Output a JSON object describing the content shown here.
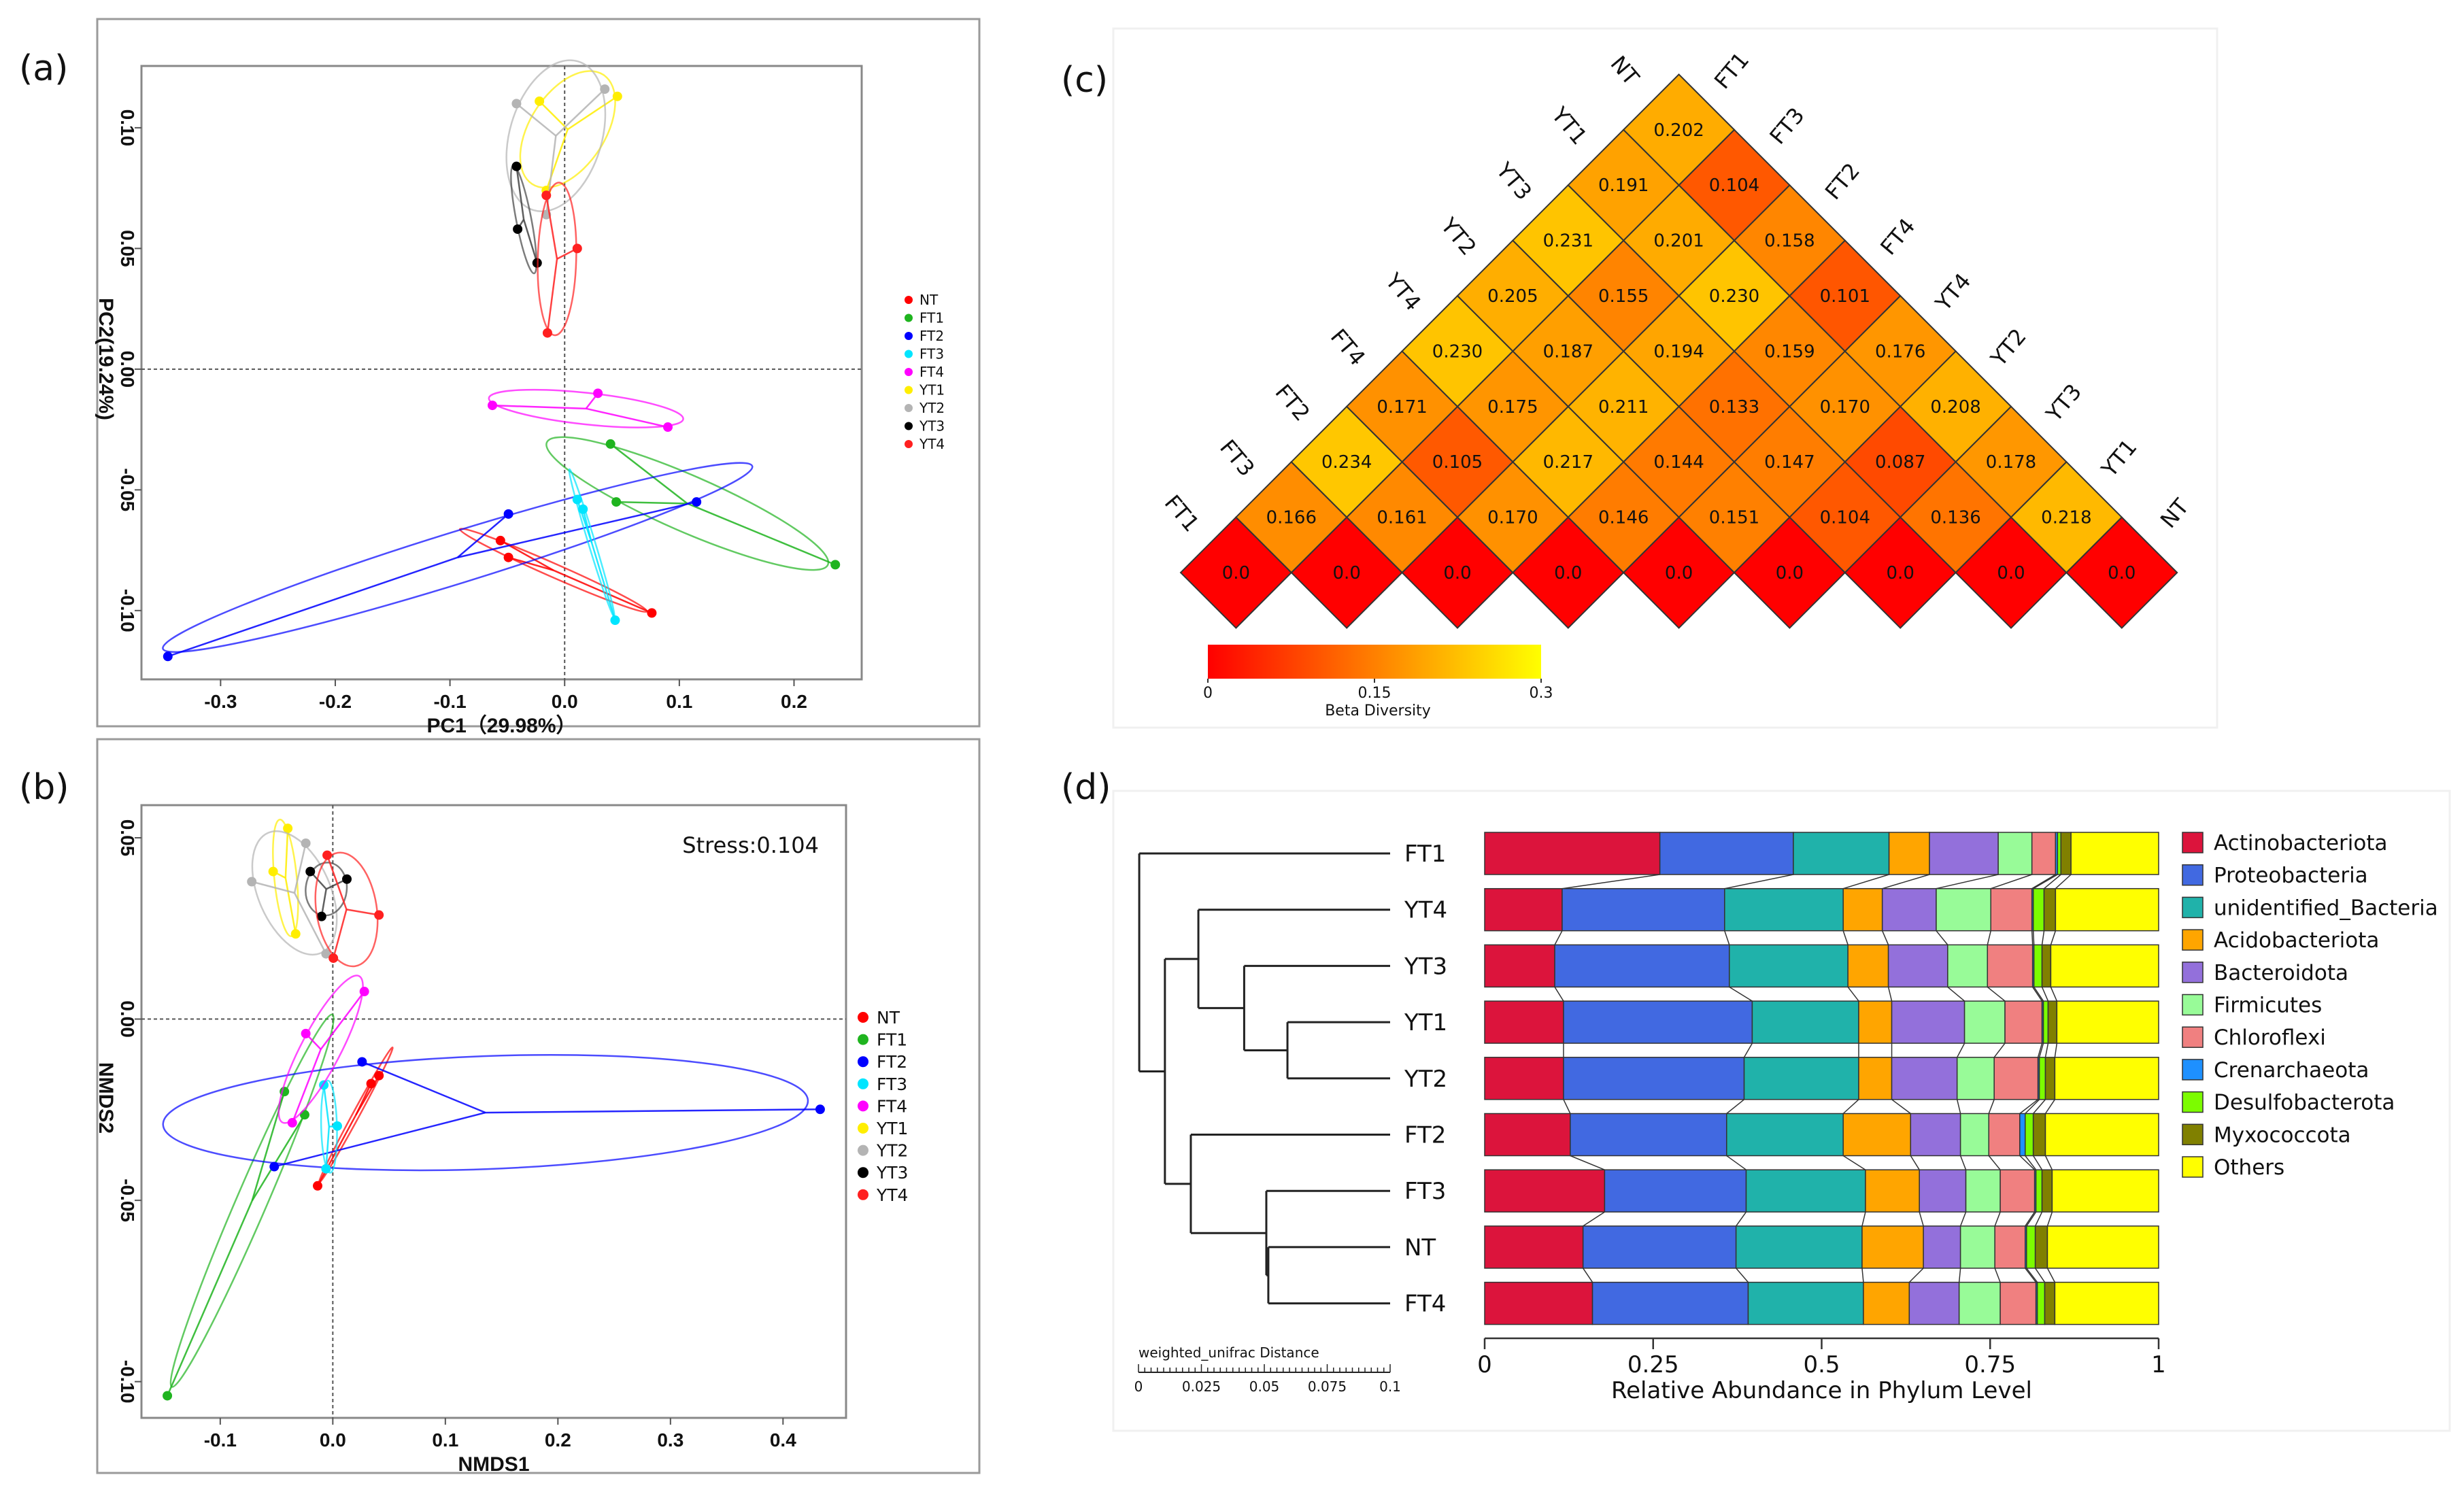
{
  "panels": {
    "a": "(a)",
    "b": "(b)",
    "c": "(c)",
    "d": "(d)"
  },
  "chart_data": [
    {
      "type": "scatter",
      "id": "pcoa",
      "xlabel": "PC1（29.98%）",
      "ylabel": "PC2(19.24%)",
      "xlim": [
        -0.369,
        0.259
      ],
      "ylim": [
        -0.1285,
        0.1256
      ],
      "xticks": [
        {
          "v": -0.3,
          "label": "-0.3"
        },
        {
          "v": -0.2,
          "label": "-0.2"
        },
        {
          "v": -0.1,
          "label": "-0.1"
        },
        {
          "v": 0,
          "label": "0.0"
        },
        {
          "v": 0.1,
          "label": "0.1"
        },
        {
          "v": 0.2,
          "label": "0.2"
        }
      ],
      "yticks": [
        {
          "v": -0.1,
          "label": "-0.10"
        },
        {
          "v": -0.05,
          "label": "-0.05"
        },
        {
          "v": 0,
          "label": "0.00"
        },
        {
          "v": 0.05,
          "label": "0.05"
        },
        {
          "v": 0.1,
          "label": "0.10"
        }
      ],
      "legend_position": "right",
      "groups": [
        {
          "name": "NT",
          "color": "#ff0000",
          "points": [
            [
              -0.056,
              -0.071
            ],
            [
              -0.049,
              -0.078
            ],
            [
              0.076,
              -0.101
            ]
          ]
        },
        {
          "name": "FT1",
          "color": "#1fb41f",
          "points": [
            [
              0.04,
              -0.031
            ],
            [
              0.045,
              -0.055
            ],
            [
              0.236,
              -0.081
            ]
          ]
        },
        {
          "name": "FT2",
          "color": "#0000ff",
          "points": [
            [
              -0.049,
              -0.06
            ],
            [
              0.115,
              -0.055
            ],
            [
              -0.346,
              -0.119
            ]
          ]
        },
        {
          "name": "FT3",
          "color": "#00e5ff",
          "points": [
            [
              0.011,
              -0.054
            ],
            [
              0.016,
              -0.058
            ],
            [
              0.044,
              -0.104
            ]
          ]
        },
        {
          "name": "FT4",
          "color": "#ff00ff",
          "points": [
            [
              -0.063,
              -0.015
            ],
            [
              0.029,
              -0.01
            ],
            [
              0.09,
              -0.024
            ]
          ]
        },
        {
          "name": "YT1",
          "color": "#ffee00",
          "points": [
            [
              -0.022,
              0.111
            ],
            [
              0.046,
              0.113
            ],
            [
              -0.016,
              0.074
            ]
          ]
        },
        {
          "name": "YT2",
          "color": "#b4b4b4",
          "points": [
            [
              -0.042,
              0.11
            ],
            [
              0.035,
              0.116
            ],
            [
              -0.016,
              0.064
            ]
          ]
        },
        {
          "name": "YT3",
          "color": "#000000",
          "points": [
            [
              -0.042,
              0.084
            ],
            [
              -0.041,
              0.058
            ],
            [
              -0.024,
              0.044
            ]
          ]
        },
        {
          "name": "YT4",
          "color": "#ff2020",
          "points": [
            [
              -0.016,
              0.072
            ],
            [
              0.011,
              0.05
            ],
            [
              -0.015,
              0.015
            ]
          ]
        }
      ]
    },
    {
      "type": "scatter",
      "id": "nmds",
      "xlabel": "NMDS1",
      "ylabel": "NMDS2",
      "annotation": "Stress:0.104",
      "xlim": [
        -0.17,
        0.456
      ],
      "ylim": [
        -0.11,
        0.059
      ],
      "xticks": [
        {
          "v": -0.1,
          "label": "-0.1"
        },
        {
          "v": 0,
          "label": "0.0"
        },
        {
          "v": 0.1,
          "label": "0.1"
        },
        {
          "v": 0.2,
          "label": "0.2"
        },
        {
          "v": 0.3,
          "label": "0.3"
        },
        {
          "v": 0.4,
          "label": "0.4"
        }
      ],
      "yticks": [
        {
          "v": -0.1,
          "label": "-0.10"
        },
        {
          "v": -0.05,
          "label": "-0.05"
        },
        {
          "v": 0,
          "label": "0.00"
        },
        {
          "v": 0.05,
          "label": "0.05"
        }
      ],
      "legend_position": "right",
      "groups": [
        {
          "name": "NT",
          "color": "#ff0000",
          "points": [
            [
              0.034,
              -0.0178
            ],
            [
              0.041,
              -0.0156
            ],
            [
              -0.0135,
              -0.046
            ]
          ]
        },
        {
          "name": "FT1",
          "color": "#1fb41f",
          "points": [
            [
              -0.043,
              -0.02
            ],
            [
              -0.025,
              -0.0264
            ],
            [
              -0.147,
              -0.1039
            ]
          ]
        },
        {
          "name": "FT2",
          "color": "#0000ff",
          "points": [
            [
              0.026,
              -0.0118
            ],
            [
              0.433,
              -0.0249
            ],
            [
              -0.052,
              -0.0407
            ]
          ]
        },
        {
          "name": "FT3",
          "color": "#00e5ff",
          "points": [
            [
              -0.008,
              -0.0182
            ],
            [
              0.004,
              -0.0295
            ],
            [
              -0.006,
              -0.0413
            ]
          ]
        },
        {
          "name": "FT4",
          "color": "#ff00ff",
          "points": [
            [
              0.028,
              0.0076
            ],
            [
              -0.024,
              -0.004
            ],
            [
              -0.036,
              -0.0286
            ]
          ]
        },
        {
          "name": "YT1",
          "color": "#ffee00",
          "points": [
            [
              -0.04,
              0.0526
            ],
            [
              -0.053,
              0.0407
            ],
            [
              -0.033,
              0.0235
            ]
          ]
        },
        {
          "name": "YT2",
          "color": "#b4b4b4",
          "points": [
            [
              -0.024,
              0.0485
            ],
            [
              -0.072,
              0.0379
            ],
            [
              -0.006,
              0.018
            ]
          ]
        },
        {
          "name": "YT3",
          "color": "#000000",
          "points": [
            [
              -0.02,
              0.0407
            ],
            [
              0.0125,
              0.0386
            ],
            [
              -0.01,
              0.0283
            ]
          ]
        },
        {
          "name": "YT4",
          "color": "#ff2020",
          "points": [
            [
              -0.005,
              0.0452
            ],
            [
              0.041,
              0.0287
            ],
            [
              0.0005,
              0.0168
            ]
          ]
        }
      ]
    },
    {
      "type": "heatmap",
      "id": "beta-diversity",
      "labels_left": [
        "FT1",
        "FT3",
        "FT2",
        "FT4",
        "YT4",
        "YT2",
        "YT3",
        "YT1",
        "NT"
      ],
      "labels_right": [
        "FT1",
        "FT3",
        "FT2",
        "FT4",
        "YT4",
        "YT2",
        "YT3",
        "YT1",
        "NT"
      ],
      "rows_bottom_up": [
        [
          "0.0",
          "0.0",
          "0.0",
          "0.0",
          "0.0",
          "0.0",
          "0.0",
          "0.0",
          "0.0"
        ],
        [
          "0.166",
          "0.161",
          "0.170",
          "0.146",
          "0.151",
          "0.104",
          "0.136",
          "0.218"
        ],
        [
          "0.234",
          "0.105",
          "0.217",
          "0.144",
          "0.147",
          "0.087",
          "0.178"
        ],
        [
          "0.171",
          "0.175",
          "0.211",
          "0.133",
          "0.170",
          "0.208"
        ],
        [
          "0.230",
          "0.187",
          "0.194",
          "0.159",
          "0.176"
        ],
        [
          "0.205",
          "0.155",
          "0.230",
          "0.101"
        ],
        [
          "0.231",
          "0.201",
          "0.158"
        ],
        [
          "0.191",
          "0.104"
        ],
        [
          "0.202"
        ]
      ],
      "colorbar": {
        "label": "Beta Diversity",
        "range": [
          0,
          0.3
        ],
        "ticks": [
          {
            "v": 0,
            "label": "0"
          },
          {
            "v": 0.15,
            "label": "0.15"
          },
          {
            "v": 0.3,
            "label": "0.3"
          }
        ],
        "colors": [
          "#ff0000",
          "#ff8000",
          "#ffff00"
        ]
      }
    },
    {
      "type": "bar",
      "stacked": true,
      "orientation": "horizontal",
      "id": "phylum-abundance",
      "xlabel": "Relative Abundance in Phylum Level",
      "xlim": [
        0,
        1
      ],
      "xticks": [
        {
          "v": 0,
          "label": "0"
        },
        {
          "v": 0.25,
          "label": "0.25"
        },
        {
          "v": 0.5,
          "label": "0.5"
        },
        {
          "v": 0.75,
          "label": "0.75"
        },
        {
          "v": 1,
          "label": "1"
        }
      ],
      "categories": [
        "FT1",
        "YT4",
        "YT3",
        "YT1",
        "YT2",
        "FT2",
        "FT3",
        "NT",
        "FT4"
      ],
      "series": [
        {
          "name": "Actinobacteriota",
          "color": "#dc143c",
          "values": [
            0.26,
            0.115,
            0.104,
            0.117,
            0.117,
            0.127,
            0.178,
            0.146,
            0.16
          ]
        },
        {
          "name": "Proteobacteria",
          "color": "#4169e1",
          "values": [
            0.198,
            0.241,
            0.259,
            0.28,
            0.268,
            0.232,
            0.21,
            0.227,
            0.231
          ]
        },
        {
          "name": "unidentified_Bacteria",
          "color": "#20b2aa",
          "values": [
            0.142,
            0.176,
            0.176,
            0.158,
            0.17,
            0.173,
            0.177,
            0.187,
            0.171
          ]
        },
        {
          "name": "Acidobacteriota",
          "color": "#ffa500",
          "values": [
            0.06,
            0.058,
            0.06,
            0.049,
            0.049,
            0.1,
            0.08,
            0.091,
            0.068
          ]
        },
        {
          "name": "Bacteroidota",
          "color": "#9370db",
          "values": [
            0.102,
            0.08,
            0.088,
            0.108,
            0.097,
            0.074,
            0.069,
            0.055,
            0.074
          ]
        },
        {
          "name": "Firmicutes",
          "color": "#98fb98",
          "values": [
            0.05,
            0.081,
            0.059,
            0.06,
            0.055,
            0.042,
            0.051,
            0.051,
            0.061
          ]
        },
        {
          "name": "Chloroflexi",
          "color": "#f08080",
          "values": [
            0.035,
            0.061,
            0.067,
            0.055,
            0.065,
            0.046,
            0.051,
            0.045,
            0.053
          ]
        },
        {
          "name": "Crenarchaeota",
          "color": "#1e90ff",
          "values": [
            0.003,
            0.002,
            0.002,
            0.002,
            0.002,
            0.008,
            0.002,
            0.002,
            0.002
          ]
        },
        {
          "name": "Desulfobacterota",
          "color": "#7cfc00",
          "values": [
            0.005,
            0.016,
            0.012,
            0.007,
            0.009,
            0.012,
            0.009,
            0.013,
            0.011
          ]
        },
        {
          "name": "Myxococcota",
          "color": "#808000",
          "values": [
            0.015,
            0.017,
            0.013,
            0.013,
            0.014,
            0.018,
            0.015,
            0.018,
            0.015
          ]
        },
        {
          "name": "Others",
          "color": "#ffff00",
          "values": [
            0.13,
            0.153,
            0.16,
            0.151,
            0.154,
            0.168,
            0.158,
            0.165,
            0.154
          ]
        }
      ],
      "legend_position": "right",
      "dendrogram": {
        "scale_label": "weighted_unifrac Distance",
        "scale_ticks": [
          {
            "v": 0,
            "label": "0"
          },
          {
            "v": 0.025,
            "label": "0.025"
          },
          {
            "v": 0.05,
            "label": "0.05"
          },
          {
            "v": 0.075,
            "label": "0.075"
          },
          {
            "v": 0.1,
            "label": "0.1"
          }
        ],
        "tree": {
          "height": 0.0997,
          "children": [
            {
              "leaf": "FT1"
            },
            {
              "height": 0.0895,
              "children": [
                {
                  "height": 0.0762,
                  "children": [
                    {
                      "leaf": "YT4"
                    },
                    {
                      "height": 0.058,
                      "children": [
                        {
                          "leaf": "YT3"
                        },
                        {
                          "height": 0.0408,
                          "children": [
                            {
                              "leaf": "YT1"
                            },
                            {
                              "leaf": "YT2"
                            }
                          ]
                        }
                      ]
                    }
                  ]
                },
                {
                  "height": 0.0792,
                  "children": [
                    {
                      "leaf": "FT2"
                    },
                    {
                      "height": 0.0492,
                      "children": [
                        {
                          "leaf": "FT3"
                        },
                        {
                          "height": 0.0484,
                          "children": [
                            {
                              "leaf": "NT"
                            },
                            {
                              "leaf": "FT4"
                            }
                          ]
                        }
                      ]
                    }
                  ]
                }
              ]
            }
          ]
        }
      }
    }
  ]
}
